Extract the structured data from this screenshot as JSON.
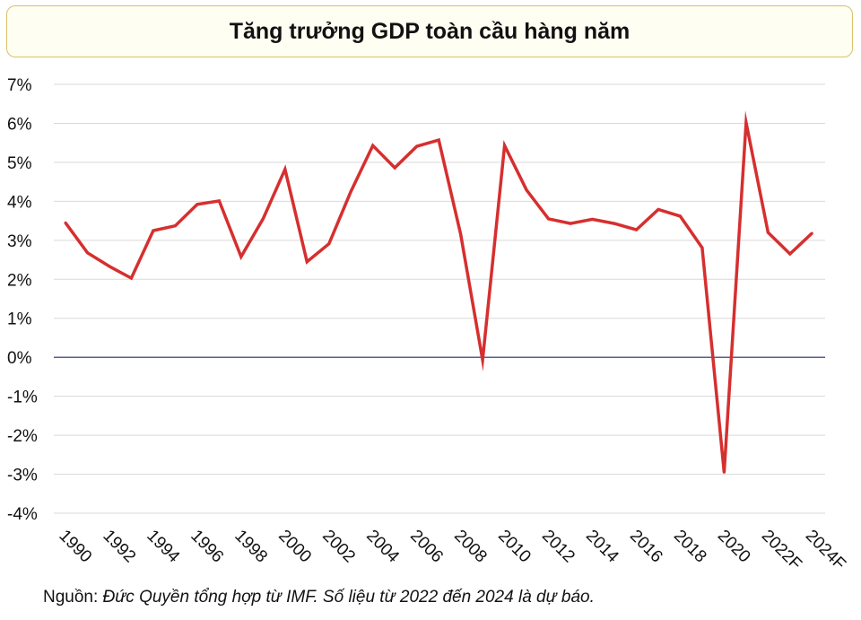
{
  "chart_data": {
    "type": "line",
    "title": "Tăng trưởng GDP toàn cầu hàng năm",
    "x": [
      "1990",
      "1991",
      "1992",
      "1993",
      "1994",
      "1995",
      "1996",
      "1997",
      "1998",
      "1999",
      "2000",
      "2001",
      "2002",
      "2003",
      "2004",
      "2005",
      "2006",
      "2007",
      "2008",
      "2009",
      "2010",
      "2011",
      "2012",
      "2013",
      "2014",
      "2015",
      "2016",
      "2017",
      "2018",
      "2019",
      "2020",
      "2021",
      "2022F",
      "2023F",
      "2024F"
    ],
    "x_tick_labels": [
      "1990",
      "1992",
      "1994",
      "1996",
      "1998",
      "2000",
      "2002",
      "2004",
      "2006",
      "2008",
      "2010",
      "2012",
      "2014",
      "2016",
      "2018",
      "2020",
      "2022F",
      "2024F"
    ],
    "series": [
      {
        "values": [
          3.45,
          2.68,
          2.33,
          2.03,
          3.25,
          3.37,
          3.92,
          4.01,
          2.58,
          3.55,
          4.82,
          2.45,
          2.91,
          4.25,
          5.43,
          4.86,
          5.41,
          5.57,
          3.16,
          -0.07,
          5.43,
          4.29,
          3.55,
          3.43,
          3.54,
          3.43,
          3.27,
          3.79,
          3.62,
          2.81,
          -2.95,
          6.02,
          3.2,
          2.65,
          3.18
        ],
        "color": "#d62f2f"
      }
    ],
    "y_ticks": [
      "7%",
      "6%",
      "5%",
      "4%",
      "3%",
      "2%",
      "1%",
      "0%",
      "-1%",
      "-2%",
      "-3%",
      "-4%"
    ],
    "ylim": [
      -4,
      7
    ],
    "grid": true,
    "zero_line_color": "#1f2a6b"
  },
  "source": {
    "prefix": "Nguồn: ",
    "text": "Đức Quyền tổng hợp từ IMF. Số liệu từ 2022 đến 2024 là dự báo."
  }
}
